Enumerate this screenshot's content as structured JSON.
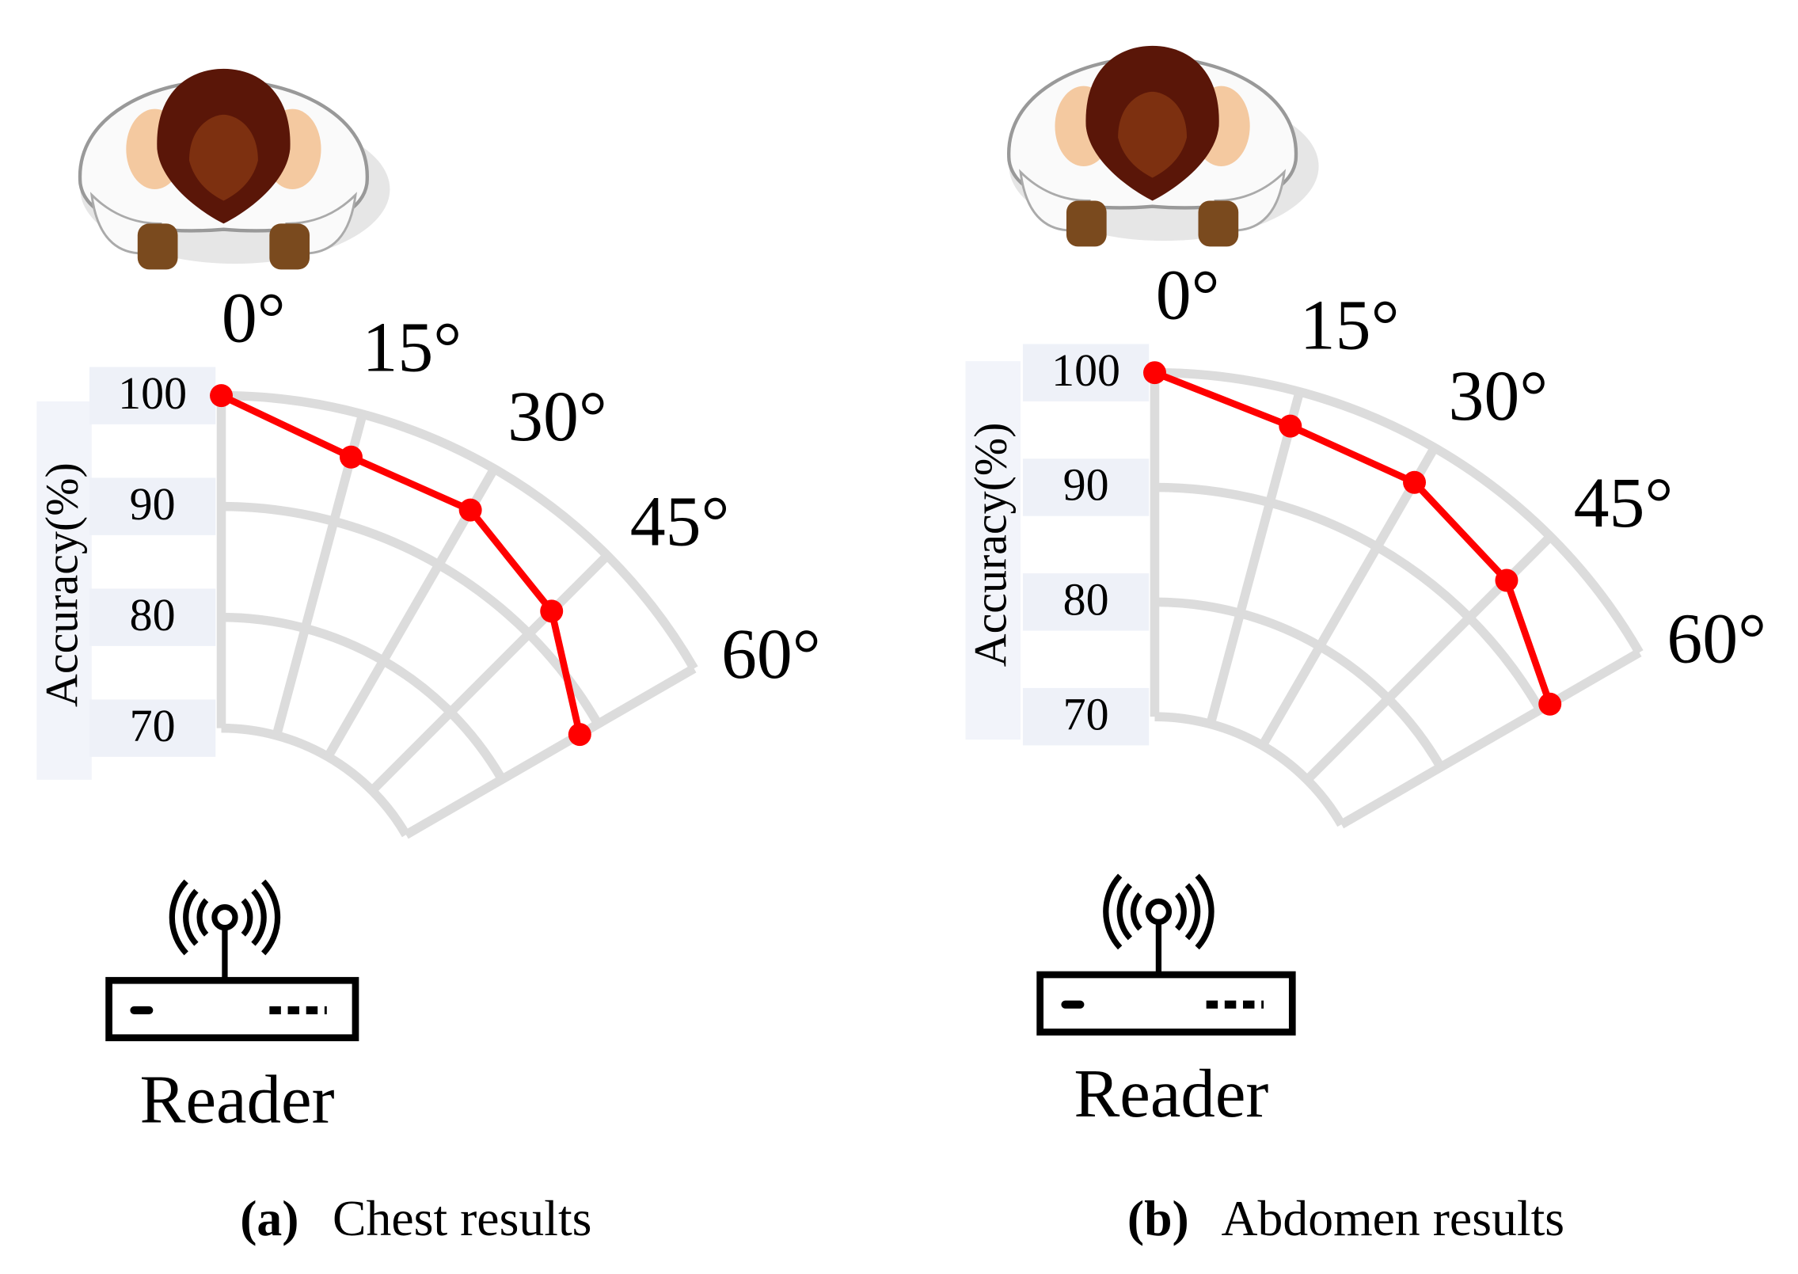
{
  "chart_data": [
    {
      "type": "polar",
      "panel": "(a)",
      "caption": "Chest results",
      "r_label": "Accuracy(%)",
      "annotation": "Reader",
      "theta": [
        {
          "value": 0,
          "label": "0°"
        },
        {
          "value": 15,
          "label": "15°"
        },
        {
          "value": 30,
          "label": "30°"
        },
        {
          "value": 45,
          "label": "45°"
        },
        {
          "value": 60,
          "label": "60°"
        }
      ],
      "values": [
        100,
        96.0,
        95.7,
        92.9,
        88.1
      ],
      "color": "#ff0000",
      "rlim": [
        70,
        100
      ],
      "rticks": [
        70,
        80,
        90,
        100
      ],
      "grid": true
    },
    {
      "type": "polar",
      "panel": "(b)",
      "caption": "Abdomen results",
      "r_label": "Accuracy(%)",
      "annotation": "Reader",
      "theta": [
        {
          "value": 0,
          "label": "0°"
        },
        {
          "value": 15,
          "label": "15°"
        },
        {
          "value": 30,
          "label": "30°"
        },
        {
          "value": 45,
          "label": "45°"
        },
        {
          "value": 60,
          "label": "60°"
        }
      ],
      "values": [
        100,
        96.9,
        96.5,
        94.6,
        91.0
      ],
      "color": "#ff0000",
      "rlim": [
        70,
        100
      ],
      "rticks": [
        70,
        80,
        90,
        100
      ],
      "grid": true
    }
  ]
}
